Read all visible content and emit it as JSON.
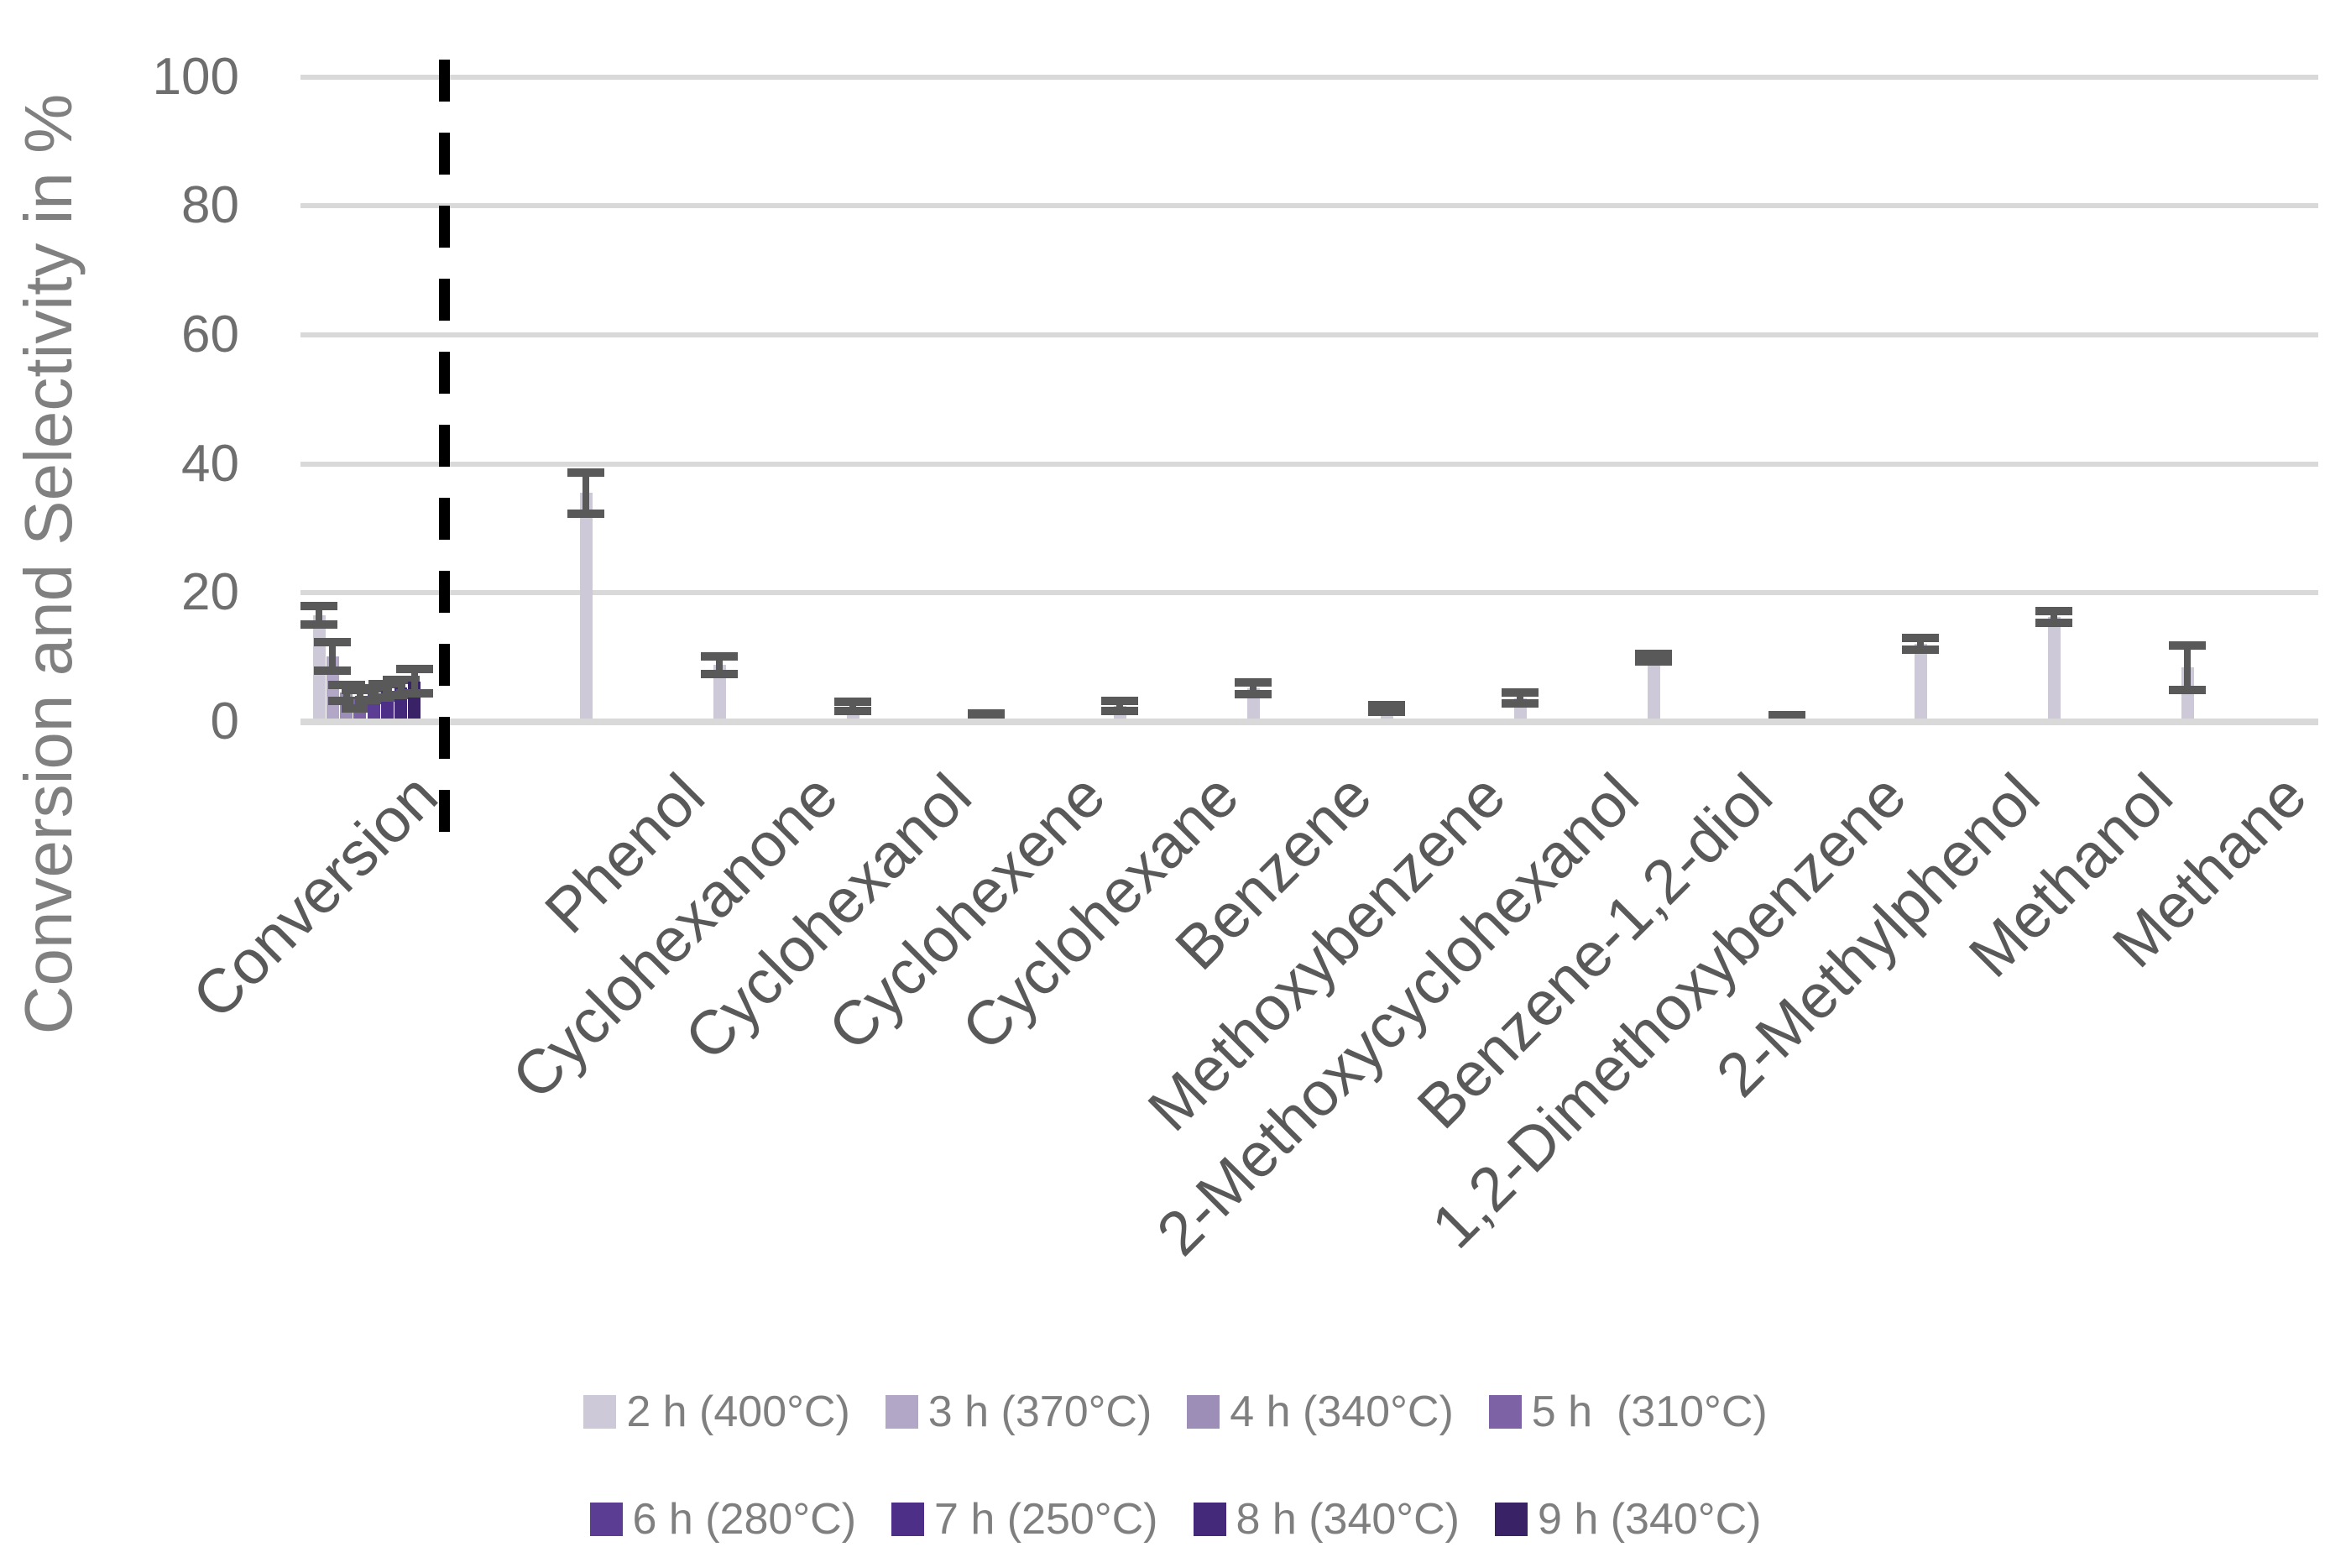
{
  "chart_data": {
    "type": "bar",
    "title": "",
    "ylabel": "Conversion and Selectivity in %",
    "xlabel": "",
    "ylim": [
      0,
      100
    ],
    "yticks": [
      0,
      20,
      40,
      60,
      80,
      100
    ],
    "grid": "horizontal",
    "legend_position": "bottom",
    "error_bars": true,
    "separator": {
      "type": "dashed-vertical-line",
      "after_category": "Conversion",
      "color": "#000000"
    },
    "categories": [
      "Conversion",
      "Phenol",
      "Cyclohexanone",
      "Cyclohexanol",
      "Cyclohexene",
      "Cyclohexane",
      "Benzene",
      "Methoxybenzene",
      "2-Methoxycyclohexanol",
      "Benzene-1,2-diol",
      "1,2-Dimethoxybenzene",
      "2-Methylphenol",
      "Methanol",
      "Methane"
    ],
    "series": [
      {
        "name": "2 h (400°C)",
        "color": "#cdc9d9",
        "values": [
          16.5,
          35.5,
          8.8,
          2.4,
          1.0,
          2.5,
          5.2,
          2.1,
          3.7,
          10.0,
          0.7,
          12.1,
          16.3,
          8.4
        ],
        "errors": [
          1.4,
          3.2,
          1.4,
          0.7,
          0.35,
          0.8,
          0.9,
          0.5,
          0.8,
          0.6,
          0.3,
          0.9,
          0.9,
          3.4
        ]
      },
      {
        "name": "3 h (370°C)",
        "color": "#b2a7c6",
        "values": [
          10.2,
          null,
          null,
          null,
          null,
          null,
          null,
          null,
          null,
          null,
          null,
          null,
          null,
          null
        ],
        "errors": [
          2.2,
          null,
          null,
          null,
          null,
          null,
          null,
          null,
          null,
          null,
          null,
          null,
          null,
          null
        ]
      },
      {
        "name": "4 h (340°C)",
        "color": "#9c8eb6",
        "values": [
          4.5,
          null,
          null,
          null,
          null,
          null,
          null,
          null,
          null,
          null,
          null,
          null,
          null,
          null
        ],
        "errors": [
          1.2,
          null,
          null,
          null,
          null,
          null,
          null,
          null,
          null,
          null,
          null,
          null,
          null,
          null
        ]
      },
      {
        "name": "5 h  (310°C)",
        "color": "#7d63a6",
        "values": [
          3.5,
          null,
          null,
          null,
          null,
          null,
          null,
          null,
          null,
          null,
          null,
          null,
          null,
          null
        ],
        "errors": [
          1.4,
          null,
          null,
          null,
          null,
          null,
          null,
          null,
          null,
          null,
          null,
          null,
          null,
          null
        ]
      },
      {
        "name": "6 h (280°C)",
        "color": "#5b3d93",
        "values": [
          4.3,
          null,
          null,
          null,
          null,
          null,
          null,
          null,
          null,
          null,
          null,
          null,
          null,
          null
        ],
        "errors": [
          0.9,
          null,
          null,
          null,
          null,
          null,
          null,
          null,
          null,
          null,
          null,
          null,
          null,
          null
        ]
      },
      {
        "name": "7 h (250°C)",
        "color": "#4d2f88",
        "values": [
          4.8,
          null,
          null,
          null,
          null,
          null,
          null,
          null,
          null,
          null,
          null,
          null,
          null,
          null
        ],
        "errors": [
          1.0,
          null,
          null,
          null,
          null,
          null,
          null,
          null,
          null,
          null,
          null,
          null,
          null,
          null
        ]
      },
      {
        "name": "8 h (340°C)",
        "color": "#44297a",
        "values": [
          5.3,
          null,
          null,
          null,
          null,
          null,
          null,
          null,
          null,
          null,
          null,
          null,
          null,
          null
        ],
        "errors": [
          1.2,
          null,
          null,
          null,
          null,
          null,
          null,
          null,
          null,
          null,
          null,
          null,
          null,
          null
        ]
      },
      {
        "name": "9 h (340°C)",
        "color": "#392266",
        "values": [
          6.3,
          null,
          null,
          null,
          null,
          null,
          null,
          null,
          null,
          null,
          null,
          null,
          null,
          null
        ],
        "errors": [
          1.9,
          null,
          null,
          null,
          null,
          null,
          null,
          null,
          null,
          null,
          null,
          null,
          null,
          null
        ]
      }
    ]
  },
  "colors": {
    "background": "#ffffff",
    "gridline": "#d9d9d9",
    "error_bar": "#595959",
    "tick_text": "#6e6e6e",
    "category_text": "#595959",
    "y_title_text": "#808080",
    "legend_text": "#7f7f7f",
    "separator": "#000000"
  },
  "legend": {
    "rows": [
      [
        "2 h (400°C)",
        "3 h (370°C)",
        "4 h (340°C)",
        "5 h  (310°C)"
      ],
      [
        "6 h (280°C)",
        "7 h (250°C)",
        "8 h (340°C)",
        "9 h (340°C)"
      ]
    ]
  }
}
